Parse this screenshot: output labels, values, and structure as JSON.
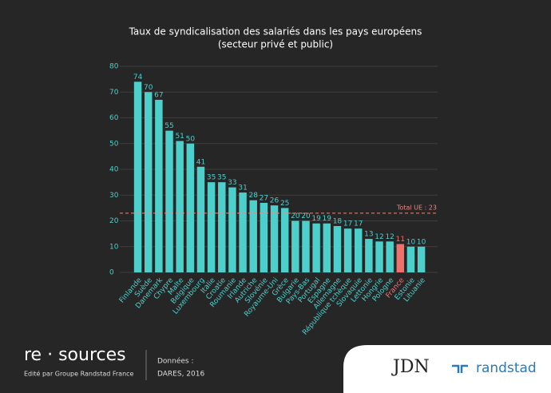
{
  "chart_data": {
    "type": "bar",
    "title": "Taux de syndicalisation des salariés dans les pays européens",
    "subtitle": "(secteur privé et public)",
    "categories": [
      "Finlande",
      "Suède",
      "Danemark",
      "Chypre",
      "Malte",
      "Belgique",
      "Luxembourg",
      "Italie",
      "Croatie",
      "Roumanie",
      "Irlande",
      "Autriche",
      "Slovénie",
      "Royaume-Uni",
      "Grèce",
      "Bulgarie",
      "Pays-Bas",
      "Portugal",
      "Espagne",
      "Allemagne",
      "République tchèque",
      "Slovaquie",
      "Lettonie",
      "Hongrie",
      "Pologne",
      "France",
      "Estonie",
      "Lituanie"
    ],
    "values": [
      74,
      70,
      67,
      55,
      51,
      50,
      41,
      35,
      35,
      33,
      31,
      28,
      27,
      26,
      25,
      20,
      20,
      19,
      19,
      18,
      17,
      17,
      13,
      12,
      12,
      11,
      10,
      10
    ],
    "colors": [
      "#4dcfcc",
      "#4dcfcc",
      "#4dcfcc",
      "#4dcfcc",
      "#4dcfcc",
      "#4dcfcc",
      "#4dcfcc",
      "#4dcfcc",
      "#4dcfcc",
      "#4dcfcc",
      "#4dcfcc",
      "#4dcfcc",
      "#4dcfcc",
      "#4dcfcc",
      "#4dcfcc",
      "#4dcfcc",
      "#4dcfcc",
      "#4dcfcc",
      "#4dcfcc",
      "#4dcfcc",
      "#4dcfcc",
      "#4dcfcc",
      "#4dcfcc",
      "#4dcfcc",
      "#4dcfcc",
      "#f0716b",
      "#4dcfcc",
      "#4dcfcc"
    ],
    "ylim": [
      0,
      80
    ],
    "yticks": [
      0,
      10,
      20,
      30,
      40,
      50,
      60,
      70,
      80
    ],
    "grid": true,
    "reference_line": {
      "value": 23,
      "label": "Total UE : 23",
      "color": "#f0867e"
    }
  },
  "footer": {
    "brand": "re · sources",
    "publisher": "Edité par Groupe Randstad France",
    "source_title": "Données :",
    "source": "DARES, 2016",
    "partner": "JDN",
    "logo": "randstad"
  }
}
